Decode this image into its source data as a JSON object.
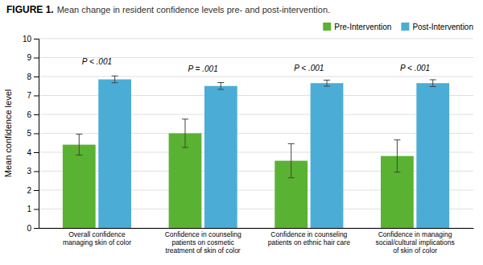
{
  "chart_data": {
    "type": "bar",
    "title": "FIGURE 1.",
    "subtitle": " Mean change in resident confidence levels pre- and post-intervention.",
    "categories": [
      "Overall confidence\nmanaging skin of color",
      "Confidence in counseling\npatients on cosmetic\ntreatment of skin of color",
      "Confidence in counseling\npatients on ethnic hair care",
      "Confidence in managing\nsocial/cultural implications\nof skin of color"
    ],
    "series": [
      {
        "name": "Pre-Intervention",
        "color": "#5ab232",
        "values": [
          4.4,
          5.0,
          3.55,
          3.8
        ],
        "errors": [
          0.55,
          0.75,
          0.9,
          0.85
        ]
      },
      {
        "name": "Post-Intervention",
        "color": "#4badd6",
        "values": [
          7.85,
          7.5,
          7.65,
          7.65
        ],
        "errors": [
          0.18,
          0.18,
          0.16,
          0.18
        ]
      }
    ],
    "annotations": [
      {
        "text": "P < .001",
        "y": 8.55
      },
      {
        "text": "P = .001",
        "y": 8.15
      },
      {
        "text": "P < .001",
        "y": 8.2
      },
      {
        "text": "P < .001",
        "y": 8.2
      }
    ],
    "ylabel": "Mean confidence level",
    "ylim": [
      0,
      10
    ],
    "yticks": [
      0,
      1,
      2,
      3,
      4,
      5,
      6,
      7,
      8,
      9,
      10
    ],
    "grid": true,
    "legend": "upper right"
  }
}
